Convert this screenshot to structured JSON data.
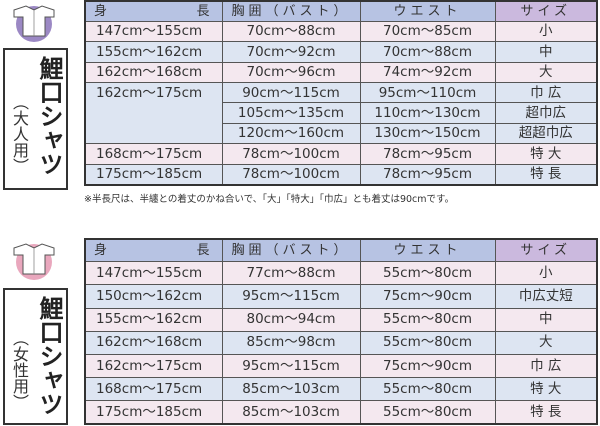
{
  "colors": {
    "header": "#b7c3e3",
    "size_header": "#cbb9de",
    "row_pink": "#f4e8ef",
    "row_blue": "#dde5f2",
    "adult_icon": "#9b88c4",
    "women_icon": "#e9a7bd"
  },
  "adult": {
    "title": "鯉口シャツ",
    "subtitle": "（大人用）",
    "icon": "shirt-icon",
    "headers": [
      "身　長",
      "胸囲（バスト）",
      "ウエスト",
      "サイズ"
    ],
    "rows": [
      [
        "147cm～155cm",
        "70cm～88cm",
        "70cm～85cm",
        "小"
      ],
      [
        "155cm～162cm",
        "70cm～92cm",
        "70cm～88cm",
        "中"
      ],
      [
        "162cm～168cm",
        "70cm～96cm",
        "74cm～92cm",
        "大"
      ],
      [
        "162cm～175cm",
        "90cm～115cm",
        "95cm～110cm",
        "巾 広"
      ],
      [
        "",
        "105cm～135cm",
        "110cm～130cm",
        "超巾広"
      ],
      [
        "",
        "120cm～160cm",
        "130cm～150cm",
        "超超巾広"
      ],
      [
        "168cm～175cm",
        "78cm～100cm",
        "78cm～95cm",
        "特 大"
      ],
      [
        "175cm～185cm",
        "78cm～100cm",
        "78cm～95cm",
        "特 長"
      ]
    ],
    "note": "※半長尺は、半纏との着丈のかね合いで、「大」「特大」「巾広」とも着丈は90cmです。"
  },
  "women": {
    "title": "鯉口シャツ",
    "subtitle": "（女性用）",
    "icon": "shirt-icon",
    "headers": [
      "身　長",
      "胸囲（バスト）",
      "ウエスト",
      "サイズ"
    ],
    "rows": [
      [
        "147cm～155cm",
        "77cm～88cm",
        "55cm～80cm",
        "小"
      ],
      [
        "150cm～162cm",
        "95cm～115cm",
        "75cm～90cm",
        "巾広丈短"
      ],
      [
        "155cm～162cm",
        "80cm～94cm",
        "55cm～80cm",
        "中"
      ],
      [
        "162cm～168cm",
        "85cm～98cm",
        "55cm～80cm",
        "大"
      ],
      [
        "162cm～175cm",
        "95cm～115cm",
        "75cm～90cm",
        "巾 広"
      ],
      [
        "168cm～175cm",
        "85cm～103cm",
        "55cm～80cm",
        "特 大"
      ],
      [
        "175cm～185cm",
        "85cm～103cm",
        "55cm～80cm",
        "特 長"
      ]
    ]
  }
}
